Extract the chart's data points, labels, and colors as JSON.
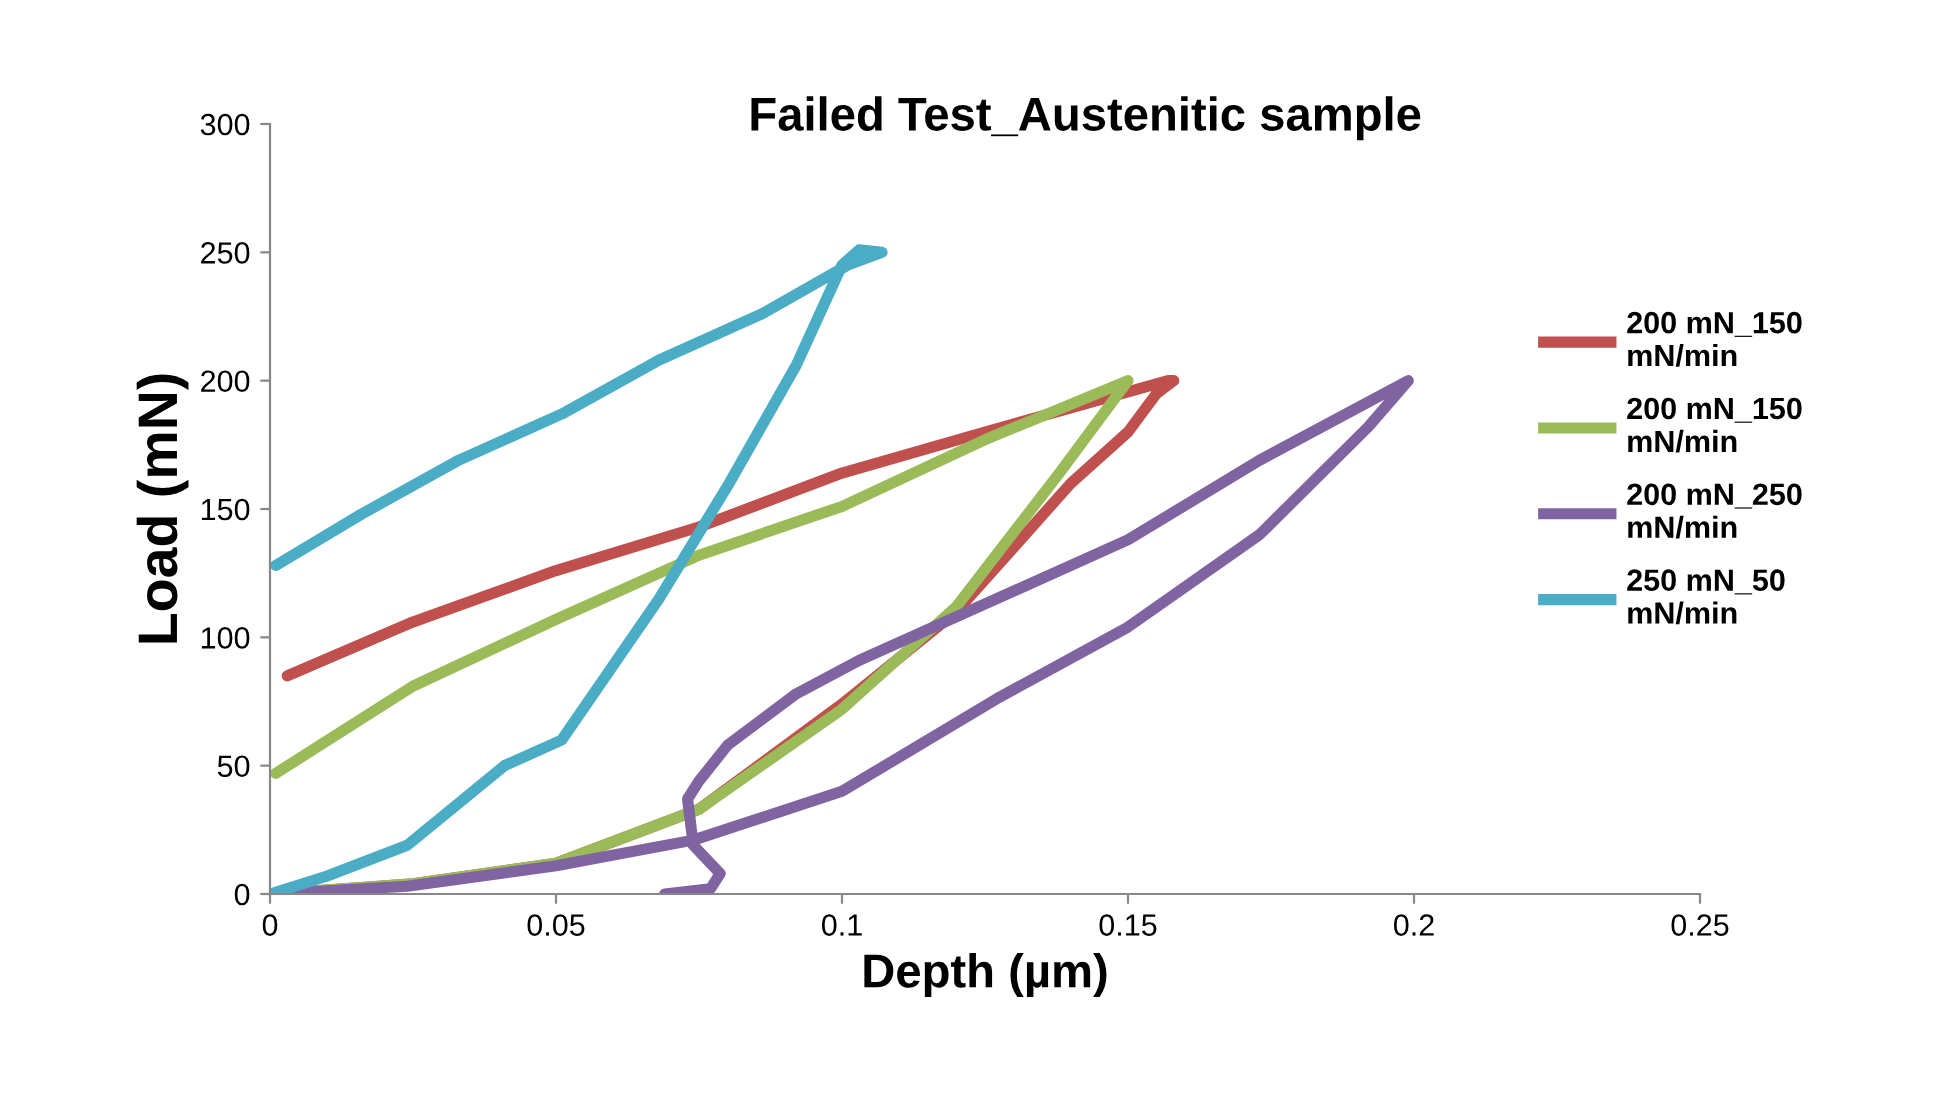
{
  "chart_data": {
    "type": "line",
    "title": "Failed Test_Austenitic sample",
    "xlabel": "Depth (µm)",
    "ylabel": "Load (mN)",
    "xlim": [
      0,
      0.25
    ],
    "xticks": [
      0,
      0.05,
      0.1,
      0.15,
      0.2,
      0.25
    ],
    "ylim": [
      0,
      300
    ],
    "yticks": [
      0,
      50,
      100,
      150,
      200,
      250,
      300
    ],
    "grid": false,
    "legend": "right",
    "marker": "none",
    "line_style": "solid",
    "series": [
      {
        "name": "200 mN_150\nmN/min",
        "color": "#c0504d",
        "x": [
          0,
          0.025,
          0.05,
          0.075,
          0.1,
          0.12,
          0.14,
          0.15,
          0.155,
          0.158,
          0.157,
          0.125,
          0.1,
          0.075,
          0.05,
          0.025,
          0.003
        ],
        "values": [
          0,
          4,
          12,
          33,
          74,
          110,
          160,
          180,
          195,
          200,
          200,
          180,
          164,
          143,
          126,
          106,
          85
        ]
      },
      {
        "name": "200 mN_150\nmN/min",
        "color": "#9bbb59",
        "x": [
          0,
          0.025,
          0.05,
          0.075,
          0.1,
          0.12,
          0.138,
          0.15,
          0.15,
          0.125,
          0.1,
          0.075,
          0.05,
          0.025,
          0.001
        ],
        "values": [
          0,
          4,
          12,
          33,
          72,
          112,
          164,
          200,
          200,
          177,
          151,
          132,
          107,
          81,
          47
        ]
      },
      {
        "name": "200 mN_250\nmN/min",
        "color": "#8064a2",
        "x": [
          0,
          0.024,
          0.05,
          0.074,
          0.1,
          0.127,
          0.15,
          0.173,
          0.192,
          0.199,
          0.173,
          0.15,
          0.103,
          0.092,
          0.08,
          0.075,
          0.073,
          0.074,
          0.0787,
          0.077,
          0.069
        ],
        "values": [
          0,
          3,
          11,
          21,
          40,
          76,
          104,
          140,
          182,
          200,
          169,
          138,
          91,
          78,
          58,
          44,
          37,
          19,
          8,
          2,
          0
        ]
      },
      {
        "name": "250 mN_50\nmN/min",
        "color": "#4bacc6",
        "x": [
          0,
          0.01,
          0.024,
          0.041,
          0.051,
          0.068,
          0.08,
          0.092,
          0.1,
          0.103,
          0.107,
          0.101,
          0.086,
          0.068,
          0.051,
          0.033,
          0.016,
          0.001
        ],
        "values": [
          0,
          7,
          19,
          50,
          60,
          115,
          159,
          206,
          245,
          251,
          250,
          245,
          226,
          208,
          187,
          169,
          148,
          128
        ]
      }
    ]
  }
}
